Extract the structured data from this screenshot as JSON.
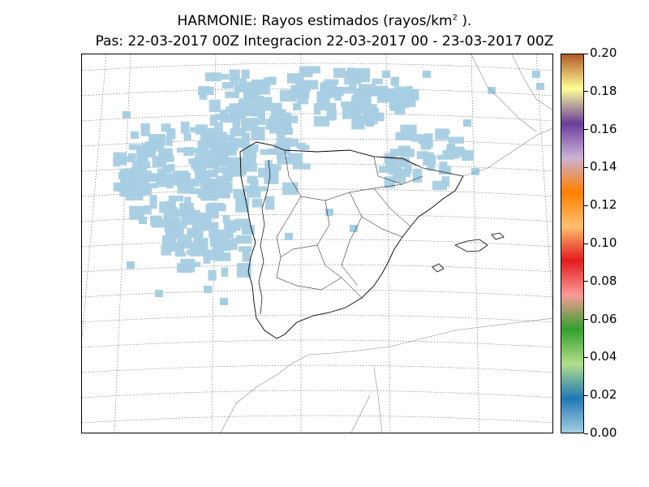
{
  "title": {
    "line1_text": "HARMONIE: Rayos estimados  (rayos/km",
    "line1_sup": "2",
    "line1_end": " ).",
    "line2": "Pas: 22-03-2017 00Z Integracion 22-03-2017 00 - 23-03-2017 00Z"
  },
  "map": {
    "region": "Iberian Peninsula",
    "projection_grid": "dotted lat/lon graticule",
    "field": "estimated lightning density",
    "field_color": "#a6cee3",
    "field_value_range": [
      0.0,
      0.02
    ],
    "coastline_color": "#000000",
    "border_color": "#888888"
  },
  "colorbar": {
    "ticks": [
      "0.00",
      "0.02",
      "0.04",
      "0.06",
      "0.08",
      "0.10",
      "0.12",
      "0.14",
      "0.16",
      "0.18",
      "0.20"
    ],
    "min": 0.0,
    "max": 0.2,
    "colors": [
      "#a6cee3",
      "#1f78b4",
      "#b2df8a",
      "#33a02c",
      "#fb9a99",
      "#e31a1c",
      "#fdbf6f",
      "#ff7f00",
      "#cab2d6",
      "#6a3d9a",
      "#ffff99",
      "#b15928"
    ]
  }
}
